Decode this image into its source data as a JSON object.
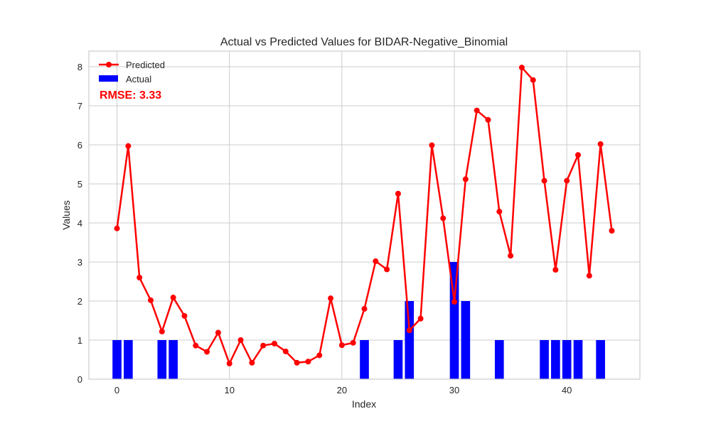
{
  "chart_data": {
    "type": "bar+line",
    "title": "Actual vs Predicted Values for BIDAR-Negative_Binomial",
    "xlabel": "Index",
    "ylabel": "Values",
    "xlim": [
      -2.5,
      46.5
    ],
    "ylim": [
      0,
      8.4
    ],
    "xticks": [
      0,
      10,
      20,
      30,
      40
    ],
    "yticks": [
      0,
      1,
      2,
      3,
      4,
      5,
      6,
      7,
      8
    ],
    "grid": true,
    "legend_position": "top-left",
    "annotation": "RMSE: 3.33",
    "x": [
      0,
      1,
      2,
      3,
      4,
      5,
      6,
      7,
      8,
      9,
      10,
      11,
      12,
      13,
      14,
      15,
      16,
      17,
      18,
      19,
      20,
      21,
      22,
      23,
      24,
      25,
      26,
      27,
      28,
      29,
      30,
      31,
      32,
      33,
      34,
      35,
      36,
      37,
      38,
      39,
      40,
      41,
      42,
      43,
      44
    ],
    "series": [
      {
        "name": "Predicted",
        "kind": "line",
        "color": "#ff0000",
        "values": [
          3.86,
          5.97,
          2.6,
          2.02,
          1.22,
          2.09,
          1.62,
          0.86,
          0.7,
          1.19,
          0.4,
          1.0,
          0.42,
          0.86,
          0.91,
          0.71,
          0.42,
          0.45,
          0.61,
          2.07,
          0.87,
          0.93,
          1.8,
          3.02,
          2.81,
          4.75,
          1.25,
          1.55,
          5.99,
          4.12,
          1.98,
          5.12,
          6.88,
          6.64,
          4.29,
          3.16,
          7.98,
          7.66,
          5.08,
          2.8,
          5.08,
          5.74,
          2.65,
          6.02,
          3.8
        ]
      },
      {
        "name": "Actual",
        "kind": "bar",
        "color": "#0000ff",
        "values": [
          1,
          1,
          0,
          0,
          1,
          1,
          0,
          0,
          0,
          0,
          0,
          0,
          0,
          0,
          0,
          0,
          0,
          0,
          0,
          0,
          0,
          0,
          1,
          0,
          0,
          1,
          2,
          0,
          0,
          0,
          3,
          2,
          0,
          0,
          1,
          0,
          0,
          0,
          1,
          1,
          1,
          1,
          0,
          1,
          0
        ]
      }
    ]
  }
}
